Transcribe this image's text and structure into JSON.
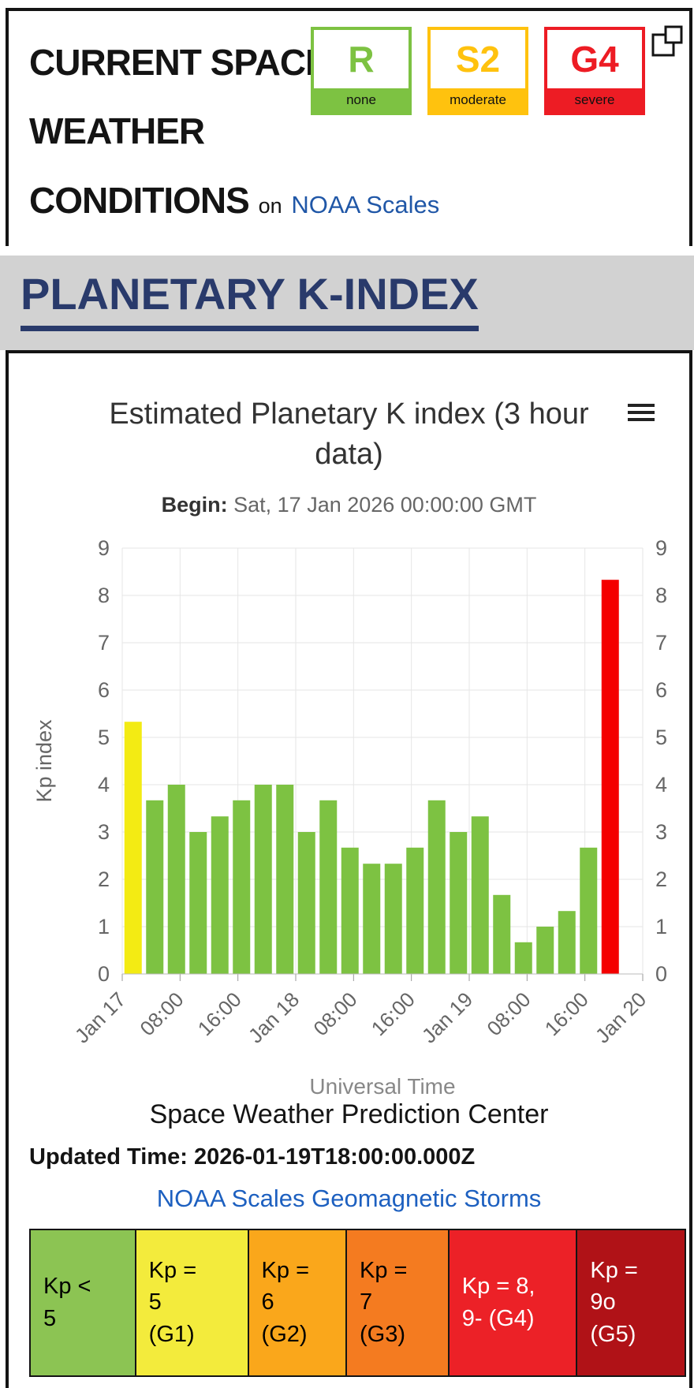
{
  "header": {
    "title_lines": [
      "CURRENT SPACE",
      "WEATHER",
      "CONDITIONS"
    ],
    "on_text": "on",
    "noaa_link": "NOAA Scales",
    "scales": [
      {
        "letter": "R",
        "label": "none",
        "color": "#7dc242"
      },
      {
        "letter": "S2",
        "label": "moderate",
        "color": "#ffc20e"
      },
      {
        "letter": "G4",
        "label": "severe",
        "color": "#ed1c24"
      }
    ]
  },
  "banner": {
    "title": "PLANETARY K-INDEX",
    "color": "#293a6b"
  },
  "footer": {
    "source": "Space Weather Prediction Center",
    "updated_label": "Updated Time:",
    "updated_value": "2026-01-19T18:00:00.000Z",
    "scales_link": "NOAA Scales Geomagnetic Storms"
  },
  "legend": {
    "cells": [
      {
        "label": "Kp <\n5",
        "bg": "#8cc453",
        "fg": "#000000"
      },
      {
        "label": "Kp =\n5\n(G1)",
        "bg": "#f3eb3c",
        "fg": "#000000"
      },
      {
        "label": "Kp =\n6\n(G2)",
        "bg": "#faa71b",
        "fg": "#000000"
      },
      {
        "label": "Kp =\n7\n(G3)",
        "bg": "#f47b20",
        "fg": "#000000"
      },
      {
        "label": "Kp = 8,\n9- (G4)",
        "bg": "#ec2127",
        "fg": "#ffffff"
      },
      {
        "label": "Kp =\n9o\n(G5)",
        "bg": "#b01217",
        "fg": "#ffffff"
      }
    ]
  },
  "chart_data": {
    "type": "bar",
    "title": "Estimated Planetary K index (3 hour data)",
    "subtitle_label": "Begin:",
    "subtitle": "Sat, 17 Jan 2026 00:00:00 GMT",
    "ylabel": "Kp index",
    "xlabel": "Universal Time",
    "ylim": [
      0,
      9
    ],
    "y_tick_interval": 1,
    "slot_hours": 3,
    "total_hours": 72,
    "grid": true,
    "legend_position": "none",
    "x_ticks": [
      {
        "hour": 0,
        "label": "Jan 17"
      },
      {
        "hour": 8,
        "label": "08:00"
      },
      {
        "hour": 16,
        "label": "16:00"
      },
      {
        "hour": 24,
        "label": "Jan 18"
      },
      {
        "hour": 32,
        "label": "08:00"
      },
      {
        "hour": 40,
        "label": "16:00"
      },
      {
        "hour": 48,
        "label": "Jan 19"
      },
      {
        "hour": 56,
        "label": "08:00"
      },
      {
        "hour": 64,
        "label": "16:00"
      },
      {
        "hour": 72,
        "label": "Jan 20"
      }
    ],
    "values": [
      5.33,
      3.67,
      4,
      3,
      3.33,
      3.67,
      4,
      4,
      3,
      3.67,
      2.67,
      2.33,
      2.33,
      2.67,
      3.67,
      3,
      3.33,
      1.67,
      0.67,
      1,
      1.33,
      2.67,
      8.33
    ],
    "bar_colors": {
      "green": "#7dc242",
      "yellow": "#f3eb13",
      "orange": "#faa71b",
      "dark_orange": "#f47b20",
      "red": "#f40000",
      "dark_red": "#b01217"
    },
    "color_rule": "kp<5:green, 5<=kp<6:yellow, 6<=kp<7:orange, 7<=kp<8:dark_orange, 8<=kp<9:red, kp=9:dark_red"
  }
}
